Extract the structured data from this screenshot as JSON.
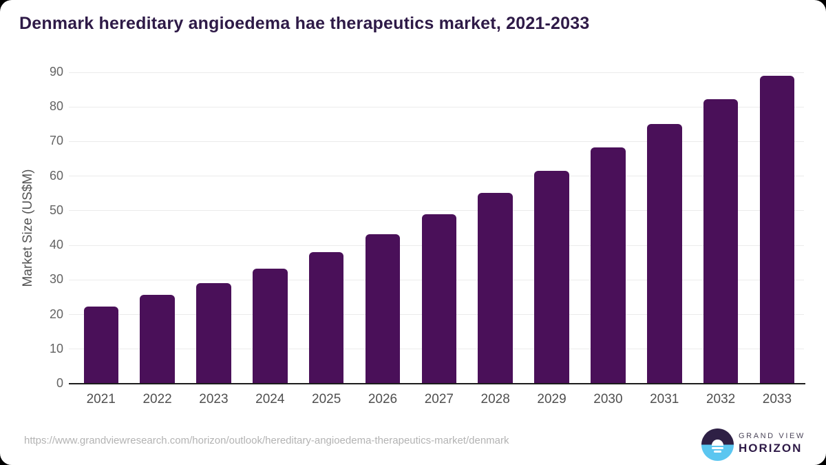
{
  "page": {
    "title": "Denmark hereditary angioedema hae therapeutics market, 2021-2033",
    "footer": {
      "source_url": "https://www.grandviewresearch.com/horizon/outlook/hereditary-angioedema-therapeutics-market/denmark",
      "brand_line1": "GRAND VIEW",
      "brand_line2": "HORIZON"
    }
  },
  "colors": {
    "bar": "#4a1059",
    "title": "#2e1a47",
    "gridline": "#ebebeb",
    "axis_line": "#1c1c1c",
    "tick_label": "#5c5c5c",
    "url_text": "#b3b3b3",
    "logo_blue": "#5bc6f0",
    "logo_purple": "#2e2045"
  },
  "chart_data": {
    "type": "bar",
    "title": "Denmark hereditary angioedema hae therapeutics market, 2021-2033",
    "categories": [
      "2021",
      "2022",
      "2023",
      "2024",
      "2025",
      "2026",
      "2027",
      "2028",
      "2029",
      "2030",
      "2031",
      "2032",
      "2033"
    ],
    "values": [
      22.3,
      25.6,
      29.0,
      33.2,
      38.0,
      43.2,
      48.9,
      55.2,
      61.5,
      68.2,
      75.0,
      82.3,
      89.0
    ],
    "xlabel": "",
    "ylabel": "Market Size (US$M)",
    "ylim": [
      0,
      90
    ],
    "yticks": [
      0,
      10,
      20,
      30,
      40,
      50,
      60,
      70,
      80,
      90
    ],
    "grid": "horizontal",
    "legend": "none",
    "bar_color": "#4a1059"
  }
}
